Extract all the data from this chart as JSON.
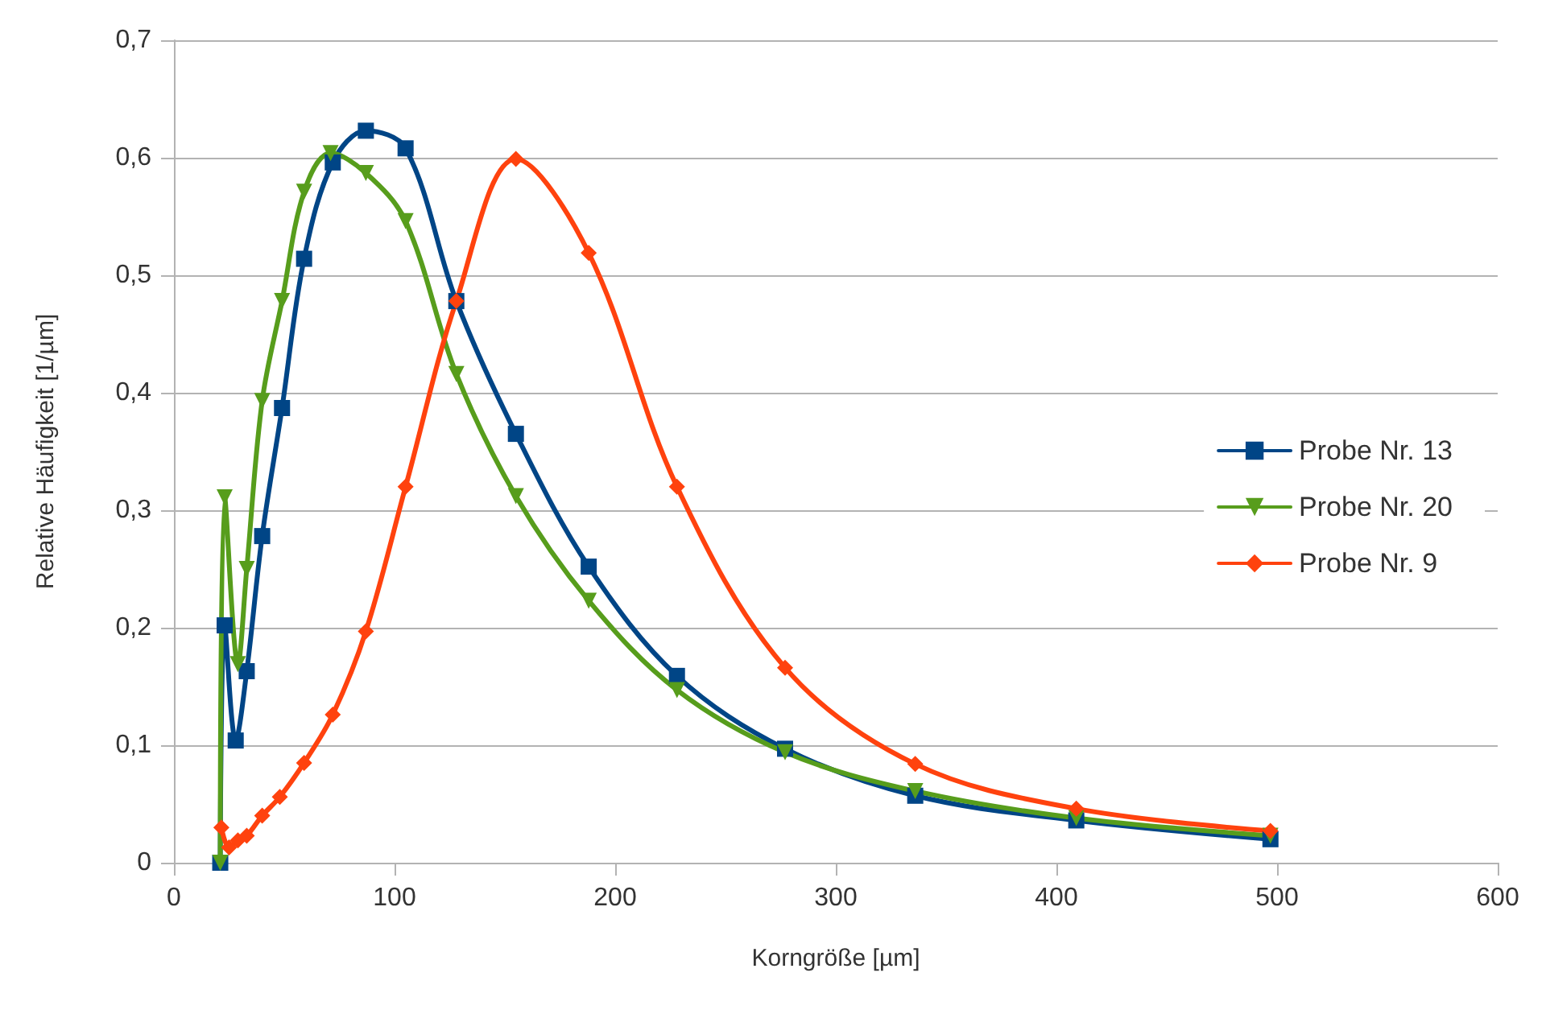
{
  "chart_data": {
    "type": "line",
    "xlabel": "Korngröße [µm]",
    "ylabel": "Relative Häufigkeit [1/µm]",
    "xlim": [
      0,
      600
    ],
    "xticks": [
      0,
      100,
      200,
      300,
      400,
      500,
      600
    ],
    "ylim": [
      0,
      0.7
    ],
    "yticks": [
      {
        "value": 0,
        "label": "0"
      },
      {
        "value": 0.1,
        "label": "0,1"
      },
      {
        "value": 0.2,
        "label": "0,2"
      },
      {
        "value": 0.3,
        "label": "0,3"
      },
      {
        "value": 0.4,
        "label": "0,4"
      },
      {
        "value": 0.5,
        "label": "0,5"
      },
      {
        "value": 0.6,
        "label": "0,6"
      },
      {
        "value": 0.7,
        "label": "0,7"
      }
    ],
    "grid": "y",
    "legend": "right",
    "line_style": "solid",
    "series": [
      {
        "name": "Probe Nr. 13",
        "color": "#004586",
        "marker": "square",
        "x": [
          21,
          23,
          28,
          33,
          40,
          49,
          59,
          72,
          87,
          105,
          128,
          155,
          188,
          228,
          277,
          336,
          409,
          497
        ],
        "values": [
          0,
          0.202,
          0.104,
          0.163,
          0.278,
          0.387,
          0.514,
          0.596,
          0.623,
          0.608,
          0.478,
          0.365,
          0.252,
          0.159,
          0.097,
          0.057,
          0.036,
          0.02
        ]
      },
      {
        "name": "Probe Nr. 20",
        "color": "#579d1c",
        "marker": "triangle",
        "x": [
          21,
          23,
          29,
          33,
          40,
          49,
          59,
          71,
          87,
          105,
          128,
          155,
          188,
          228,
          277,
          336,
          409,
          497
        ],
        "values": [
          0,
          0.311,
          0.169,
          0.25,
          0.393,
          0.478,
          0.571,
          0.604,
          0.587,
          0.546,
          0.416,
          0.312,
          0.223,
          0.147,
          0.094,
          0.061,
          0.038,
          0.023
        ]
      },
      {
        "name": "Probe Nr. 9",
        "color": "#ff420e",
        "marker": "diamond",
        "x": [
          21.5,
          25,
          29,
          33,
          40,
          48,
          59,
          72,
          87,
          105,
          128,
          155,
          188,
          228,
          277,
          336,
          409,
          497
        ],
        "values": [
          0.03,
          0.013,
          0.019,
          0.023,
          0.04,
          0.056,
          0.085,
          0.126,
          0.197,
          0.32,
          0.478,
          0.599,
          0.519,
          0.32,
          0.166,
          0.084,
          0.046,
          0.027
        ]
      }
    ]
  }
}
